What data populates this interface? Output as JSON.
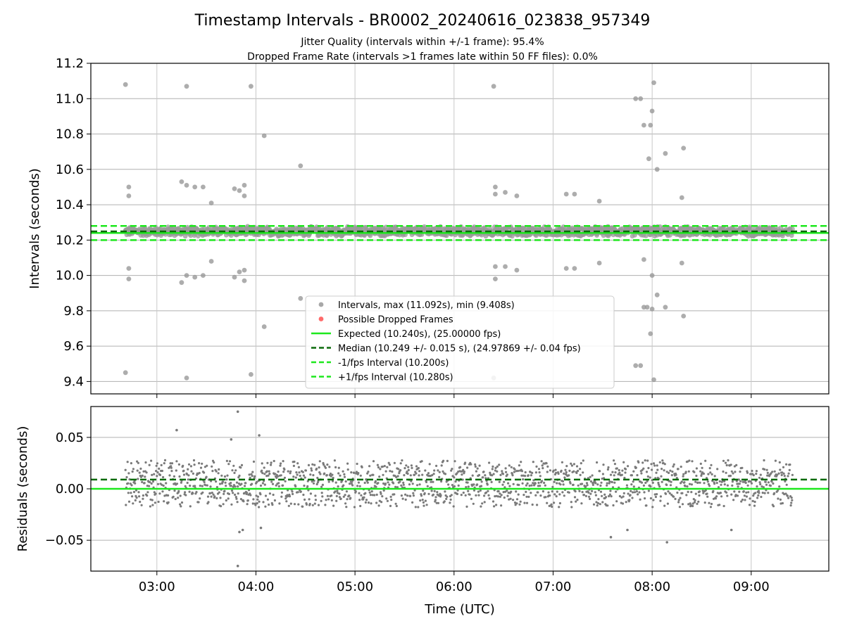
{
  "figure": {
    "title": "Timestamp Intervals - BR0002_20240616_023838_957349",
    "subtitle_1": "Jitter Quality (intervals within +/-1 frame): 95.4%",
    "subtitle_2": "Dropped Frame Rate (intervals >1 frames late within 50 FF files): 0.0%"
  },
  "chart_data": [
    {
      "type": "scatter",
      "ylabel": "Intervals (seconds)",
      "xlim": [
        "02:20",
        "09:47"
      ],
      "ylim": [
        9.33,
        11.2
      ],
      "yticks": [
        "9.4",
        "9.6",
        "9.8",
        "10.0",
        "10.2",
        "10.4",
        "10.6",
        "10.8",
        "11.0",
        "11.2"
      ],
      "grid": true,
      "legend_position": "lower-center",
      "reference_lines": {
        "expected": 10.24,
        "median": 10.249,
        "minus_one_fps": 10.2,
        "plus_one_fps": 10.28
      },
      "legend": [
        {
          "label": "Intervals, max (11.092s), min (9.408s)",
          "marker": "dot",
          "color": "#999999"
        },
        {
          "label": "Possible Dropped Frames",
          "marker": "dot",
          "color": "#ff5050"
        },
        {
          "label": "Expected (10.240s), (25.00000 fps)",
          "marker": "solid",
          "color": "#1de81d"
        },
        {
          "label": "Median (10.249 +/- 0.015 s), (24.97869 +/- 0.04 fps)",
          "marker": "dashed",
          "color": "#0a6a0a"
        },
        {
          "label": "-1/fps Interval (10.200s)",
          "marker": "dashed",
          "color": "#1de81d"
        },
        {
          "label": "+1/fps Interval (10.280s)",
          "marker": "dashed",
          "color": "#1de81d"
        }
      ],
      "series": [
        {
          "name": "Intervals, max (11.092s), min (9.408s)",
          "band": {
            "from": "02:41",
            "to": "09:25",
            "center": 10.249,
            "spread": 0.03
          },
          "outliers": [
            [
              "02:41",
              11.08
            ],
            [
              "02:41",
              9.45
            ],
            [
              "02:43",
              10.5
            ],
            [
              "02:43",
              10.45
            ],
            [
              "02:43",
              10.04
            ],
            [
              "02:43",
              9.98
            ],
            [
              "03:15",
              10.53
            ],
            [
              "03:15",
              9.96
            ],
            [
              "03:18",
              11.07
            ],
            [
              "03:18",
              10.51
            ],
            [
              "03:18",
              10.0
            ],
            [
              "03:18",
              9.42
            ],
            [
              "03:23",
              10.5
            ],
            [
              "03:23",
              9.99
            ],
            [
              "03:28",
              10.5
            ],
            [
              "03:28",
              10.0
            ],
            [
              "03:33",
              10.41
            ],
            [
              "03:33",
              10.08
            ],
            [
              "03:47",
              10.49
            ],
            [
              "03:47",
              9.99
            ],
            [
              "03:50",
              10.48
            ],
            [
              "03:50",
              10.02
            ],
            [
              "03:53",
              10.51
            ],
            [
              "03:53",
              10.45
            ],
            [
              "03:53",
              10.03
            ],
            [
              "03:53",
              9.97
            ],
            [
              "03:57",
              11.07
            ],
            [
              "03:57",
              9.44
            ],
            [
              "04:05",
              10.79
            ],
            [
              "04:05",
              9.71
            ],
            [
              "04:27",
              10.62
            ],
            [
              "04:27",
              9.87
            ],
            [
              "06:24",
              11.07
            ],
            [
              "06:24",
              9.42
            ],
            [
              "06:25",
              10.5
            ],
            [
              "06:25",
              10.46
            ],
            [
              "06:25",
              10.05
            ],
            [
              "06:25",
              9.98
            ],
            [
              "06:31",
              10.47
            ],
            [
              "06:31",
              10.05
            ],
            [
              "06:38",
              10.45
            ],
            [
              "06:38",
              10.03
            ],
            [
              "07:08",
              10.46
            ],
            [
              "07:08",
              10.04
            ],
            [
              "07:13",
              10.46
            ],
            [
              "07:13",
              10.04
            ],
            [
              "07:28",
              10.42
            ],
            [
              "07:28",
              10.07
            ],
            [
              "07:50",
              11.0
            ],
            [
              "07:50",
              9.49
            ],
            [
              "07:53",
              11.0
            ],
            [
              "07:53",
              9.49
            ],
            [
              "07:55",
              10.85
            ],
            [
              "07:55",
              10.09
            ],
            [
              "07:55",
              9.82
            ],
            [
              "07:57",
              9.82
            ],
            [
              "07:58",
              10.66
            ],
            [
              "07:59",
              10.85
            ],
            [
              "07:59",
              9.67
            ],
            [
              "08:00",
              10.93
            ],
            [
              "08:00",
              10.0
            ],
            [
              "08:00",
              9.81
            ],
            [
              "08:01",
              11.09
            ],
            [
              "08:01",
              9.41
            ],
            [
              "08:03",
              10.6
            ],
            [
              "08:03",
              9.89
            ],
            [
              "08:08",
              10.69
            ],
            [
              "08:08",
              9.82
            ],
            [
              "08:18",
              10.44
            ],
            [
              "08:18",
              10.07
            ],
            [
              "08:19",
              10.72
            ],
            [
              "08:19",
              9.77
            ]
          ]
        },
        {
          "name": "Possible Dropped Frames",
          "points": []
        }
      ]
    },
    {
      "type": "scatter",
      "ylabel": "Residuals (seconds)",
      "xlabel": "Time (UTC)",
      "xlim": [
        "02:20",
        "09:47"
      ],
      "ylim": [
        -0.08,
        0.08
      ],
      "yticks": [
        "−0.05",
        "0.00",
        "0.05"
      ],
      "xticks": [
        "03:00",
        "04:00",
        "05:00",
        "06:00",
        "07:00",
        "08:00",
        "09:00"
      ],
      "grid": true,
      "reference_lines": {
        "zero": 0.0,
        "median_offset": 0.009
      },
      "series": [
        {
          "name": "Residuals",
          "band": {
            "from": "02:41",
            "to": "09:25",
            "levels": [
              -0.01,
              0.0,
              0.01,
              0.02
            ],
            "noise": 0.013
          },
          "outliers": [
            [
              "03:12",
              0.057
            ],
            [
              "03:45",
              0.048
            ],
            [
              "03:49",
              0.075
            ],
            [
              "03:49",
              -0.075
            ],
            [
              "03:50",
              -0.042
            ],
            [
              "03:52",
              -0.04
            ],
            [
              "04:02",
              0.052
            ],
            [
              "04:03",
              -0.038
            ],
            [
              "07:35",
              -0.047
            ],
            [
              "08:09",
              -0.052
            ],
            [
              "07:45",
              -0.04
            ],
            [
              "08:48",
              -0.04
            ]
          ]
        }
      ]
    }
  ]
}
